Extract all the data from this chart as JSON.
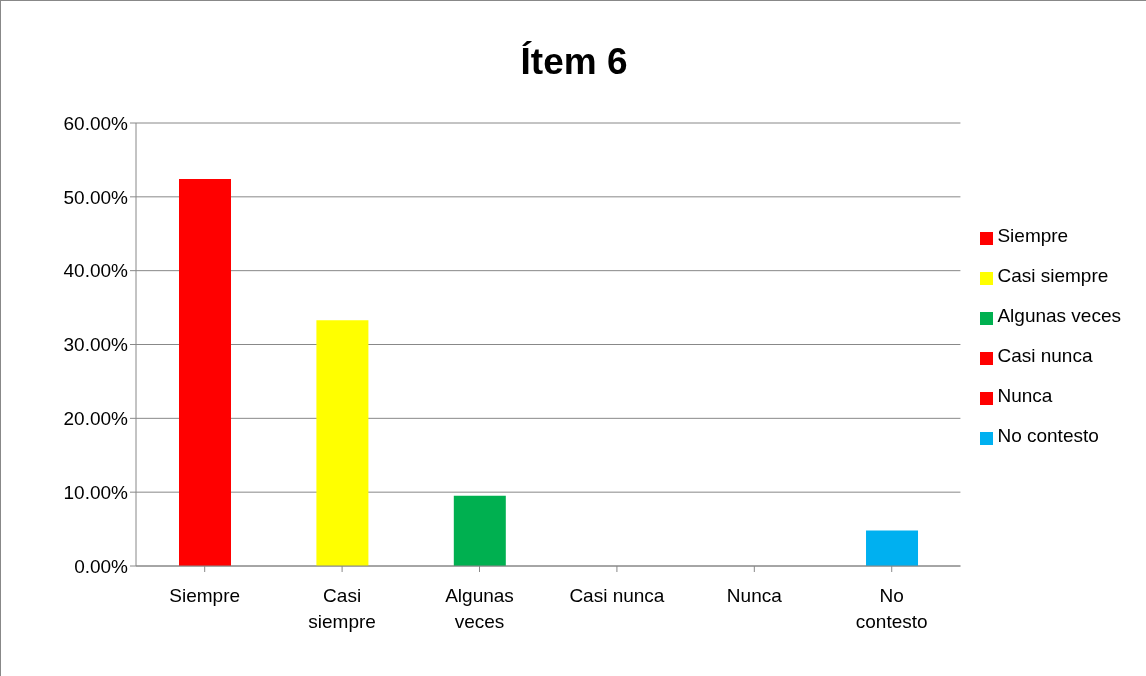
{
  "chart_data": {
    "type": "bar",
    "title": "Ítem 6",
    "categories": [
      "Siempre",
      "Casi siempre",
      "Algunas veces",
      "Casi nunca",
      "Nunca",
      "No contesto"
    ],
    "series": [
      {
        "name": "Siempre",
        "color": "#ff0000",
        "values": [
          52.4,
          null,
          null,
          null,
          null,
          null
        ]
      },
      {
        "name": "Casi siempre",
        "color": "#ffff00",
        "values": [
          null,
          33.3,
          null,
          null,
          null,
          null
        ]
      },
      {
        "name": "Algunas veces",
        "color": "#00b050",
        "values": [
          null,
          null,
          9.5,
          null,
          null,
          null
        ]
      },
      {
        "name": "Casi nunca",
        "color": "#ff0000",
        "values": [
          null,
          null,
          null,
          0,
          null,
          null
        ]
      },
      {
        "name": "Nunca",
        "color": "#ff0000",
        "values": [
          null,
          null,
          null,
          null,
          0,
          null
        ]
      },
      {
        "name": "No contesto",
        "color": "#00b0f0",
        "values": [
          null,
          null,
          null,
          null,
          null,
          4.8
        ]
      }
    ],
    "stacked": true,
    "ylim": [
      0,
      60
    ],
    "yticks": [
      {
        "value": 0,
        "label": "0.00%"
      },
      {
        "value": 10,
        "label": "10.00%"
      },
      {
        "value": 20,
        "label": "20.00%"
      },
      {
        "value": 30,
        "label": "30.00%"
      },
      {
        "value": 40,
        "label": "40.00%"
      },
      {
        "value": 50,
        "label": "50.00%"
      },
      {
        "value": 60,
        "label": "60.00%"
      }
    ],
    "grid": "y",
    "legend": "right"
  }
}
